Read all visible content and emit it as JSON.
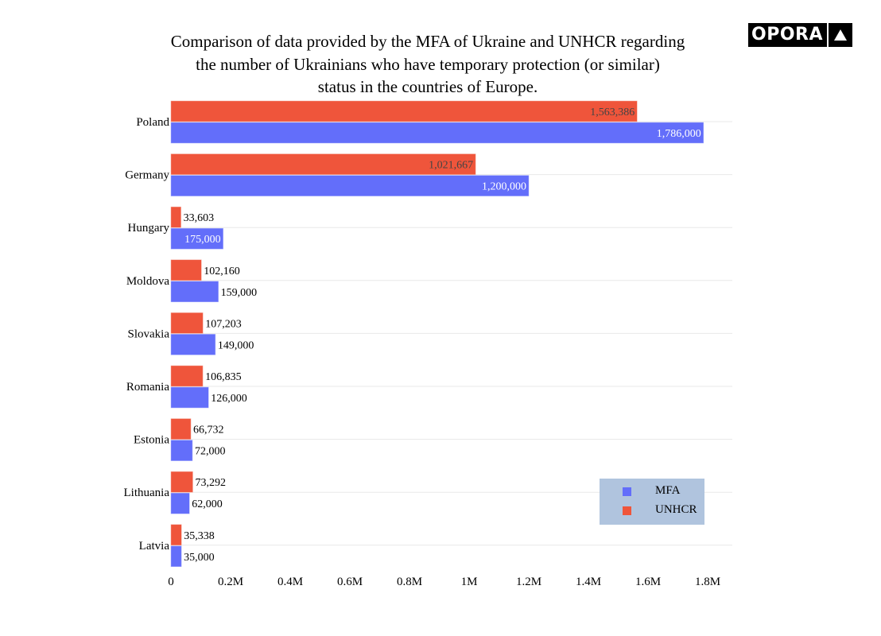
{
  "logo": {
    "text": "OPORA",
    "icon": "triangle-up-icon"
  },
  "chart_data": {
    "type": "bar",
    "orientation": "horizontal",
    "title": "Comparison of data provided by the MFA of Ukraine and UNHCR regarding the number of Ukrainians who have temporary protection (or similar) status in the countries of Europe.",
    "title_lines": [
      "Comparison of data provided by the MFA of Ukraine and UNHCR regarding",
      "the number of Ukrainians who have temporary protection (or similar)",
      "status in the countries of Europe."
    ],
    "categories": [
      "Poland",
      "Germany",
      "Hungary",
      "Moldova",
      "Slovakia",
      "Romania",
      "Estonia",
      "Lithuania",
      "Latvia"
    ],
    "series": [
      {
        "name": "MFA",
        "color": "#636efa",
        "values": [
          1786000,
          1200000,
          175000,
          159000,
          149000,
          126000,
          72000,
          62000,
          35000
        ],
        "labels": [
          "1,786,000",
          "1,200,000",
          "175,000",
          "159,000",
          "149,000",
          "126,000",
          "72,000",
          "62,000",
          "35,000"
        ]
      },
      {
        "name": "UNHCR",
        "color": "#ef553b",
        "values": [
          1563386,
          1021667,
          33603,
          102160,
          107203,
          106835,
          66732,
          73292,
          35338
        ],
        "labels": [
          "1,563,386",
          "1,021,667",
          "33,603",
          "102,160",
          "107,203",
          "106,835",
          "66,732",
          "73,292",
          "35,338"
        ]
      }
    ],
    "xlabel": "",
    "ylabel": "",
    "xlim": [
      0,
      1880000
    ],
    "xticks": [
      0,
      200000,
      400000,
      600000,
      800000,
      1000000,
      1200000,
      1400000,
      1600000,
      1800000
    ],
    "xtick_labels": [
      "0",
      "0.2M",
      "0.4M",
      "0.6M",
      "0.8M",
      "1M",
      "1.2M",
      "1.4M",
      "1.6M",
      "1.8M"
    ],
    "grid": "horizontal",
    "legend": {
      "position": "bottom-right",
      "background": "#b0c4de"
    }
  }
}
